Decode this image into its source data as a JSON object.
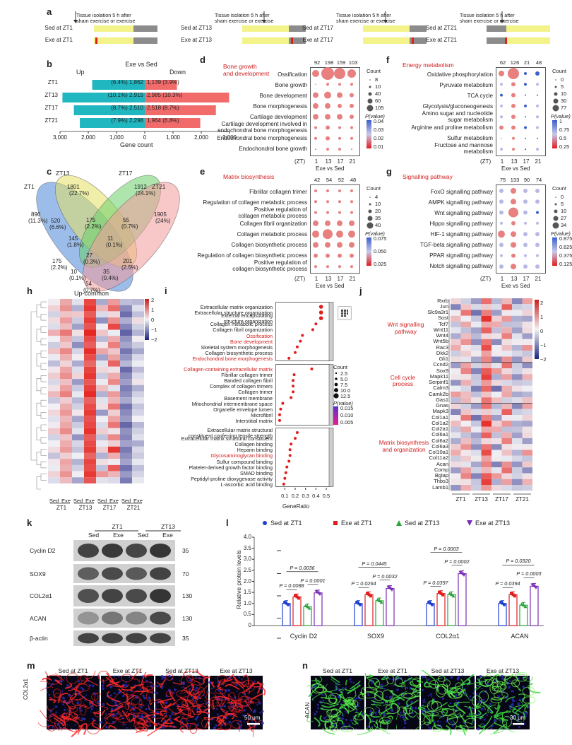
{
  "panels": {
    "a": "a",
    "b": "b",
    "c": "c",
    "d": "d",
    "e": "e",
    "f": "f",
    "g": "g",
    "h": "h",
    "i": "i",
    "j": "j",
    "k": "k",
    "l": "l",
    "m": "m",
    "n": "n"
  },
  "panel_a": {
    "note_line1": "Tissue isolation 5 h after",
    "note_line2": "sham exercise or exercise",
    "groups": [
      {
        "sed": "Sed at ZT1",
        "exe": "Exe at ZT1"
      },
      {
        "sed": "Sed at ZT13",
        "exe": "Exe at ZT13"
      },
      {
        "sed": "Sed at ZT17",
        "exe": "Exe at ZT17"
      },
      {
        "sed": "Sed at ZT21",
        "exe": "Exe at ZT21"
      }
    ],
    "colors": {
      "light": "#f3f38a",
      "dark": "#8c8c8c",
      "exercise": "#e01e1e"
    }
  },
  "panel_b": {
    "title": "Exe vs Sed",
    "up": "Up",
    "down": "Down",
    "xlabel": "Gene count",
    "ticks": [
      "3,000",
      "2,000",
      "1,000",
      "0",
      "1,000",
      "2,000",
      "3,000"
    ],
    "rows": [
      {
        "zt": "ZT1",
        "up_label": "(6.4%) 1,862",
        "down_label": "1,139 (3.9%)"
      },
      {
        "zt": "ZT13",
        "up_label": "(10.1%) 2,915",
        "down_label": "2,985 (10.3%)"
      },
      {
        "zt": "ZT17",
        "up_label": "(8.7%) 2,510",
        "down_label": "2,518 (8.7%)"
      },
      {
        "zt": "ZT21",
        "up_label": "(7.9%) 2,298",
        "down_label": "1,964 (6.8%)"
      }
    ],
    "up_color": "#21b7c0",
    "down_color": "#f26b6b"
  },
  "chart_data": [
    {
      "type": "bar",
      "panel": "b",
      "title": "Exe vs Sed",
      "xlabel": "Gene count",
      "categories": [
        "ZT1",
        "ZT13",
        "ZT17",
        "ZT21"
      ],
      "series": [
        {
          "name": "Up",
          "values": [
            1862,
            2915,
            2510,
            2298
          ]
        },
        {
          "name": "Down",
          "values": [
            1139,
            2985,
            2518,
            1964
          ]
        }
      ],
      "xlim": [
        -3000,
        3000
      ]
    },
    {
      "type": "bar",
      "panel": "l",
      "ylabel": "Relative protein levels",
      "ylim": [
        0,
        4.0
      ],
      "categories": [
        "Cyclin D2",
        "SOX9",
        "COL2α1",
        "ACAN"
      ],
      "series": [
        {
          "name": "Sed at ZT1",
          "values": [
            1.0,
            1.0,
            1.0,
            1.0
          ]
        },
        {
          "name": "Exe at ZT1",
          "values": [
            1.3,
            1.4,
            1.45,
            1.4
          ]
        },
        {
          "name": "Sed at ZT13",
          "values": [
            0.85,
            1.12,
            1.4,
            0.92
          ]
        },
        {
          "name": "Exe at ZT13",
          "values": [
            1.48,
            1.68,
            2.35,
            1.78
          ]
        }
      ]
    }
  ],
  "panel_c": {
    "labels": {
      "zt1": "ZT1",
      "zt13": "ZT13",
      "zt17": "ZT17",
      "zt21": "ZT21"
    },
    "values": [
      "1801",
      "(22.7%)",
      "1912",
      "(24.1%)",
      "896",
      "(11.3%)",
      "1905",
      "(24%)",
      "520",
      "(6.6%)",
      "175",
      "(2.2%)",
      "55",
      "(0.7%)",
      "145",
      "(1.8%)",
      "11",
      "(0.1%)",
      "27",
      "(0.3%)",
      "175",
      "(2.2%)",
      "201",
      "(2.5%)",
      "10",
      "(0.1%)",
      "35",
      "(0.4%)",
      "54",
      "(0.7%)"
    ]
  },
  "panel_d": {
    "title": "Bone growth\nand development",
    "counts": [
      "92",
      "198",
      "159",
      "103"
    ],
    "terms": [
      "Ossification",
      "Bone growth",
      "Bone development",
      "Bone morphogenesis",
      "Cartilage development",
      "Cartilage development involved in\nendochondral bone morphogenesis",
      "Endochondral bone morphogenesis",
      "Endochondral bone growth"
    ],
    "legend_count": [
      "8",
      "10",
      "40",
      "60",
      "105"
    ],
    "legend_p": [
      "0.04",
      "0.03",
      "0.02",
      "0.01"
    ]
  },
  "panel_e": {
    "title": "Matrix biosynthesis",
    "counts": [
      "42",
      "54",
      "52",
      "48"
    ],
    "terms": [
      "Fibrillar collagen trimer",
      "Regulation of collagen metabolic process",
      "Positive regulation of\ncollagen metabolic process",
      "Collagen fibril organization",
      "Collagen metabolic process",
      "Collagen biosynthetic process",
      "Regulation of collagen biosynthetic process",
      "Positive regulation of\ncollagen biosynthetic process"
    ],
    "legend_count": [
      "4",
      "10",
      "20",
      "35",
      "40"
    ],
    "legend_p": [
      "0.075",
      "0.050",
      "0.025"
    ]
  },
  "panel_f": {
    "title": "Energy metabolism",
    "counts": [
      "62",
      "126",
      "21",
      "48"
    ],
    "terms": [
      "Oxidative phosphorylation",
      "Pyruvate metabolism",
      "TCA cycle",
      "Glycolysis/gluconeogenesis",
      "Amino sugar and nucleotide\nsugar metabolism",
      "Arginine and proline metabolism",
      "Sulfur metabolism",
      "Fructose and mannose\nmetabolism"
    ],
    "legend_count": [
      "0",
      "5",
      "10",
      "30",
      "77"
    ],
    "legend_p": [
      "1",
      "0.75",
      "0.5",
      "0.25"
    ]
  },
  "panel_g": {
    "title": "Signalling pathway",
    "counts": [
      "75",
      "133",
      "90",
      "74"
    ],
    "terms": [
      "FoxO signalling pathway",
      "AMPK signalling pathway",
      "Wnt signalling pathway",
      "Hippo signalling pathway",
      "HIF-1 signalling pathway",
      "TGF-beta signalling pathway",
      "PPAR signalling pathway",
      "Notch signalling pathway"
    ],
    "legend_count": [
      "0",
      "5",
      "10",
      "27",
      "34"
    ],
    "legend_p": [
      "0.875",
      "0.625",
      "0.375",
      "0.125"
    ]
  },
  "dot_axes": {
    "zt": "(ZT)",
    "ticks": [
      "1",
      "13",
      "17",
      "21"
    ],
    "sub": "Exe vs Sed",
    "count": "Count",
    "pvalue": "P(value)"
  },
  "panel_h": {
    "title": "Up-common",
    "scale": [
      "2",
      "1",
      "0",
      "−1",
      "−2"
    ],
    "cols": [
      "Sed",
      "Exe",
      "Sed",
      "Exe",
      "Sed",
      "Exe",
      "Sed",
      "Exe"
    ],
    "groups": [
      "ZT1",
      "ZT13",
      "ZT17",
      "ZT21"
    ]
  },
  "panel_i": {
    "terms1": [
      "Extracellular matrix organization",
      "Extracellular structure organization",
      "External encapsulating\nstructure organization",
      "Collagen metabolic process",
      "Collagen fibril organization",
      "Ossification",
      "Bone development",
      "Skeletal system morphogenesis",
      "Collagen biosynthetic process",
      "Endochondral bone morphogenesis"
    ],
    "terms2": [
      "Collagen-containing extracellular matrix",
      "Fibrillar collagen trimer",
      "Banded collagen fibril",
      "Complex of collagen trimers",
      "Collagen trimer",
      "Basement membrane",
      "Mitochondrial intermembrane space",
      "Organelle envelope lumen",
      "Microfibril",
      "Interstitial matrix"
    ],
    "terms3": [
      "Extracellular matrix structural\nconstituent conferring tensile strength",
      "Extracellular matrix structural constituent",
      "Collagen binding",
      "Heparin binding",
      "Glycosaminoglycan binding",
      "Sulfur compound binding",
      "Platelet-derived growth factor binding",
      "SMAD binding",
      "Peptidyl-proline dioxygenase activity",
      "L-ascorbic acid binding"
    ],
    "xlabel": "GeneRatio",
    "xticks": [
      "0.1",
      "0.2",
      "0.3",
      "0.4",
      "0.5"
    ],
    "legend_count": [
      "2.5",
      "5.0",
      "7.5",
      "10.0",
      "12.5"
    ],
    "legend_p": [
      "0.015",
      "0.010",
      "0.005"
    ]
  },
  "panel_j": {
    "wnt_label": "Wnt signalling\npathway",
    "cell_label": "Cell cycle\nprocess",
    "matrix_label": "Matrix biosynthesis\nand organization",
    "genes": [
      "Rxrb",
      "Jun",
      "Slc9a3r1",
      "Sost",
      "Tcf7",
      "Wnt11",
      "Wnt4",
      "Wnt5b",
      "Rac3",
      "Dkk2",
      "Gli1",
      "Ccnd2",
      "Sox9",
      "Mapk11",
      "Serpinf1",
      "Calm3",
      "Camk2b",
      "Gas1",
      "Gnas",
      "Mapk3",
      "Col1a1",
      "Col1a2",
      "Col2a1",
      "Col6a1",
      "Col6a2",
      "Col6a3",
      "Col10a1",
      "Col11a2",
      "Acan",
      "Comp",
      "Bglap",
      "Thbs3",
      "Lamb1"
    ],
    "scale": [
      "2",
      "1",
      "0",
      "−1",
      "−2"
    ],
    "groups": [
      "ZT1",
      "ZT13",
      "ZT17",
      "ZT21"
    ]
  },
  "panel_k": {
    "groups": [
      "ZT1",
      "ZT13"
    ],
    "cols": [
      "Sed",
      "Exe",
      "Sed",
      "Exe"
    ],
    "rows": [
      "Cyclin D2",
      "SOX9",
      "COL2α1",
      "ACAN",
      "β-actin"
    ],
    "mw": [
      "35",
      "70",
      "130",
      "130",
      "35"
    ]
  },
  "panel_l": {
    "legend": [
      "Sed at ZT1",
      "Exe at ZT1",
      "Sed at ZT13",
      "Exe at ZT13"
    ],
    "colors": [
      "#1d3fd1",
      "#e01e1e",
      "#2aa43a",
      "#7a2fb5"
    ],
    "ylabel": "Relative protein levels",
    "yticks": [
      "4.0",
      "3.5",
      "3.0",
      "2.5",
      "2.0",
      "1.5",
      "1.0",
      "0.5",
      "0"
    ],
    "categories": [
      "Cyclin D2",
      "SOX9",
      "COL2α1",
      "ACAN"
    ],
    "pvals": [
      [
        "P = 0.0036",
        "P = 0.0088",
        "P = 0.0001"
      ],
      [
        "P = 0.0445",
        "P = 0.0264",
        "P = 0.0032"
      ],
      [
        "P = 0.0003",
        "P = 0.0397",
        "P = 0.0002"
      ],
      [
        "P = 0.0320",
        "P = 0.0394",
        "P = 0.0003"
      ]
    ]
  },
  "panel_m": {
    "side": "COL2α1",
    "cols": [
      "Sed at ZT1",
      "Exe at ZT1",
      "Sed at ZT13",
      "Exe at ZT13"
    ],
    "scale": "50 μm"
  },
  "panel_n": {
    "side": "ACAN",
    "cols": [
      "Sed at ZT1",
      "Exe at ZT1",
      "Sed at ZT13",
      "Exe at ZT13"
    ],
    "scale": "30 μm"
  }
}
